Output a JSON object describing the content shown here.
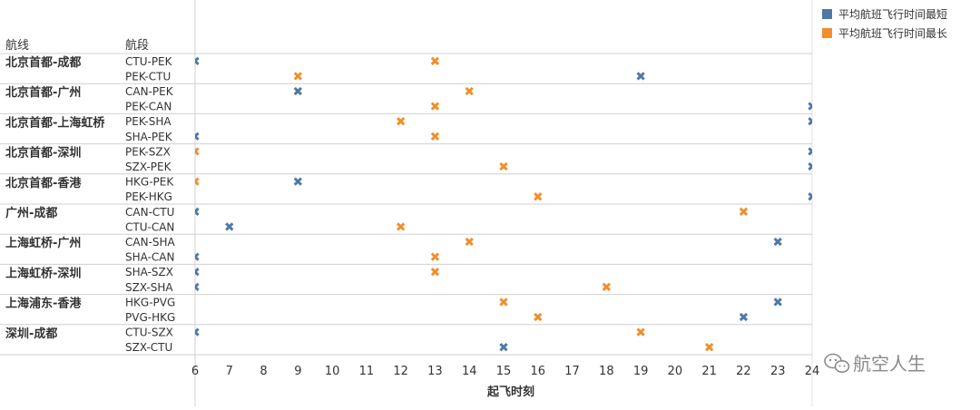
{
  "chart_data": {
    "type": "scatter",
    "row_header": "航线",
    "col_header": "航段",
    "xlabel": "起飞时刻",
    "xlim": [
      6,
      24
    ],
    "xticks": [
      6,
      7,
      8,
      9,
      10,
      11,
      12,
      13,
      14,
      15,
      16,
      17,
      18,
      19,
      20,
      21,
      22,
      23,
      24
    ],
    "legend_position": "top-right",
    "series": [
      {
        "name": "平均航班飞行时间最短",
        "color": "#4e79a7"
      },
      {
        "name": "平均航班飞行时间最长",
        "color": "#f28e2b"
      }
    ],
    "groups": [
      {
        "route": "北京首都-成都",
        "segments": [
          {
            "segment": "CTU-PEK",
            "shortest": 6,
            "longest": 13
          },
          {
            "segment": "PEK-CTU",
            "shortest": 19,
            "longest": 9
          }
        ]
      },
      {
        "route": "北京首都-广州",
        "segments": [
          {
            "segment": "CAN-PEK",
            "shortest": 9,
            "longest": 14
          },
          {
            "segment": "PEK-CAN",
            "shortest": 24,
            "longest": 13
          }
        ]
      },
      {
        "route": "北京首都-上海虹桥",
        "segments": [
          {
            "segment": "PEK-SHA",
            "shortest": 24,
            "longest": 12
          },
          {
            "segment": "SHA-PEK",
            "shortest": 6,
            "longest": 13
          }
        ]
      },
      {
        "route": "北京首都-深圳",
        "segments": [
          {
            "segment": "PEK-SZX",
            "shortest": 24,
            "longest": 6
          },
          {
            "segment": "SZX-PEK",
            "shortest": 24,
            "longest": 15
          }
        ]
      },
      {
        "route": "北京首都-香港",
        "segments": [
          {
            "segment": "HKG-PEK",
            "shortest": 9,
            "longest": 6
          },
          {
            "segment": "PEK-HKG",
            "shortest": 24,
            "longest": 16
          }
        ]
      },
      {
        "route": "广州-成都",
        "segments": [
          {
            "segment": "CAN-CTU",
            "shortest": 6,
            "longest": 22
          },
          {
            "segment": "CTU-CAN",
            "shortest": 7,
            "longest": 12
          }
        ]
      },
      {
        "route": "上海虹桥-广州",
        "segments": [
          {
            "segment": "CAN-SHA",
            "shortest": 23,
            "longest": 14
          },
          {
            "segment": "SHA-CAN",
            "shortest": 6,
            "longest": 13
          }
        ]
      },
      {
        "route": "上海虹桥-深圳",
        "segments": [
          {
            "segment": "SHA-SZX",
            "shortest": 6,
            "longest": 13
          },
          {
            "segment": "SZX-SHA",
            "shortest": 6,
            "longest": 18
          }
        ]
      },
      {
        "route": "上海浦东-香港",
        "segments": [
          {
            "segment": "HKG-PVG",
            "shortest": 23,
            "longest": 15
          },
          {
            "segment": "PVG-HKG",
            "shortest": 22,
            "longest": 16
          }
        ]
      },
      {
        "route": "深圳-成都",
        "segments": [
          {
            "segment": "CTU-SZX",
            "shortest": 6,
            "longest": 19
          },
          {
            "segment": "SZX-CTU",
            "shortest": 15,
            "longest": 21
          }
        ]
      }
    ]
  },
  "watermark": {
    "text": "航空人生",
    "icon": "wechat-icon"
  }
}
